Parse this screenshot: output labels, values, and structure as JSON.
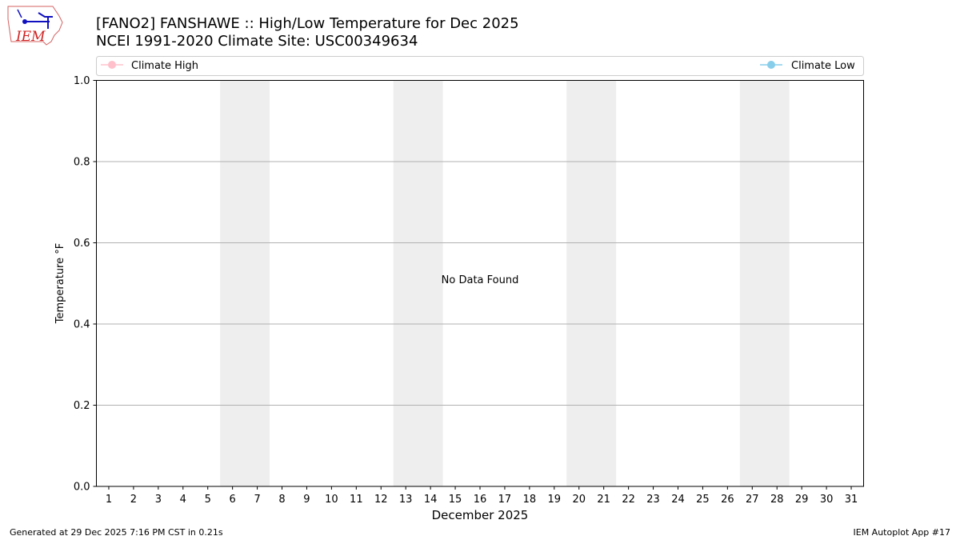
{
  "logo": {
    "text": "IEM"
  },
  "chart_data": {
    "type": "line",
    "title": "[FANO2] FANSHAWE :: High/Low Temperature for Dec 2025",
    "subtitle": "NCEI 1991-2020 Climate Site: USC00349634",
    "xlabel": "December 2025",
    "ylabel": "Temperature °F",
    "xlim": [
      0.5,
      31.5
    ],
    "ylim": [
      0,
      1
    ],
    "x_ticks": [
      1,
      2,
      3,
      4,
      5,
      6,
      7,
      8,
      9,
      10,
      11,
      12,
      13,
      14,
      15,
      16,
      17,
      18,
      19,
      20,
      21,
      22,
      23,
      24,
      25,
      26,
      27,
      28,
      29,
      30,
      31
    ],
    "y_ticks": [
      "0.0",
      "0.2",
      "0.4",
      "0.6",
      "0.8",
      "1.0"
    ],
    "grid": "horizontal",
    "weekend_shading": [
      [
        5.5,
        7.5
      ],
      [
        12.5,
        14.5
      ],
      [
        19.5,
        21.5
      ],
      [
        26.5,
        28.5
      ]
    ],
    "annotation": "No Data Found",
    "legend": [
      {
        "name": "Climate High",
        "color": "#ffc0cb",
        "placement": "top-left"
      },
      {
        "name": "Climate Low",
        "color": "#87ceeb",
        "placement": "top-right"
      }
    ],
    "series": [
      {
        "name": "Climate High",
        "values": []
      },
      {
        "name": "Climate Low",
        "values": []
      }
    ]
  },
  "footer": {
    "generated": "Generated at 29 Dec 2025 7:16 PM CST in 0.21s",
    "app": "IEM Autoplot App #17"
  }
}
